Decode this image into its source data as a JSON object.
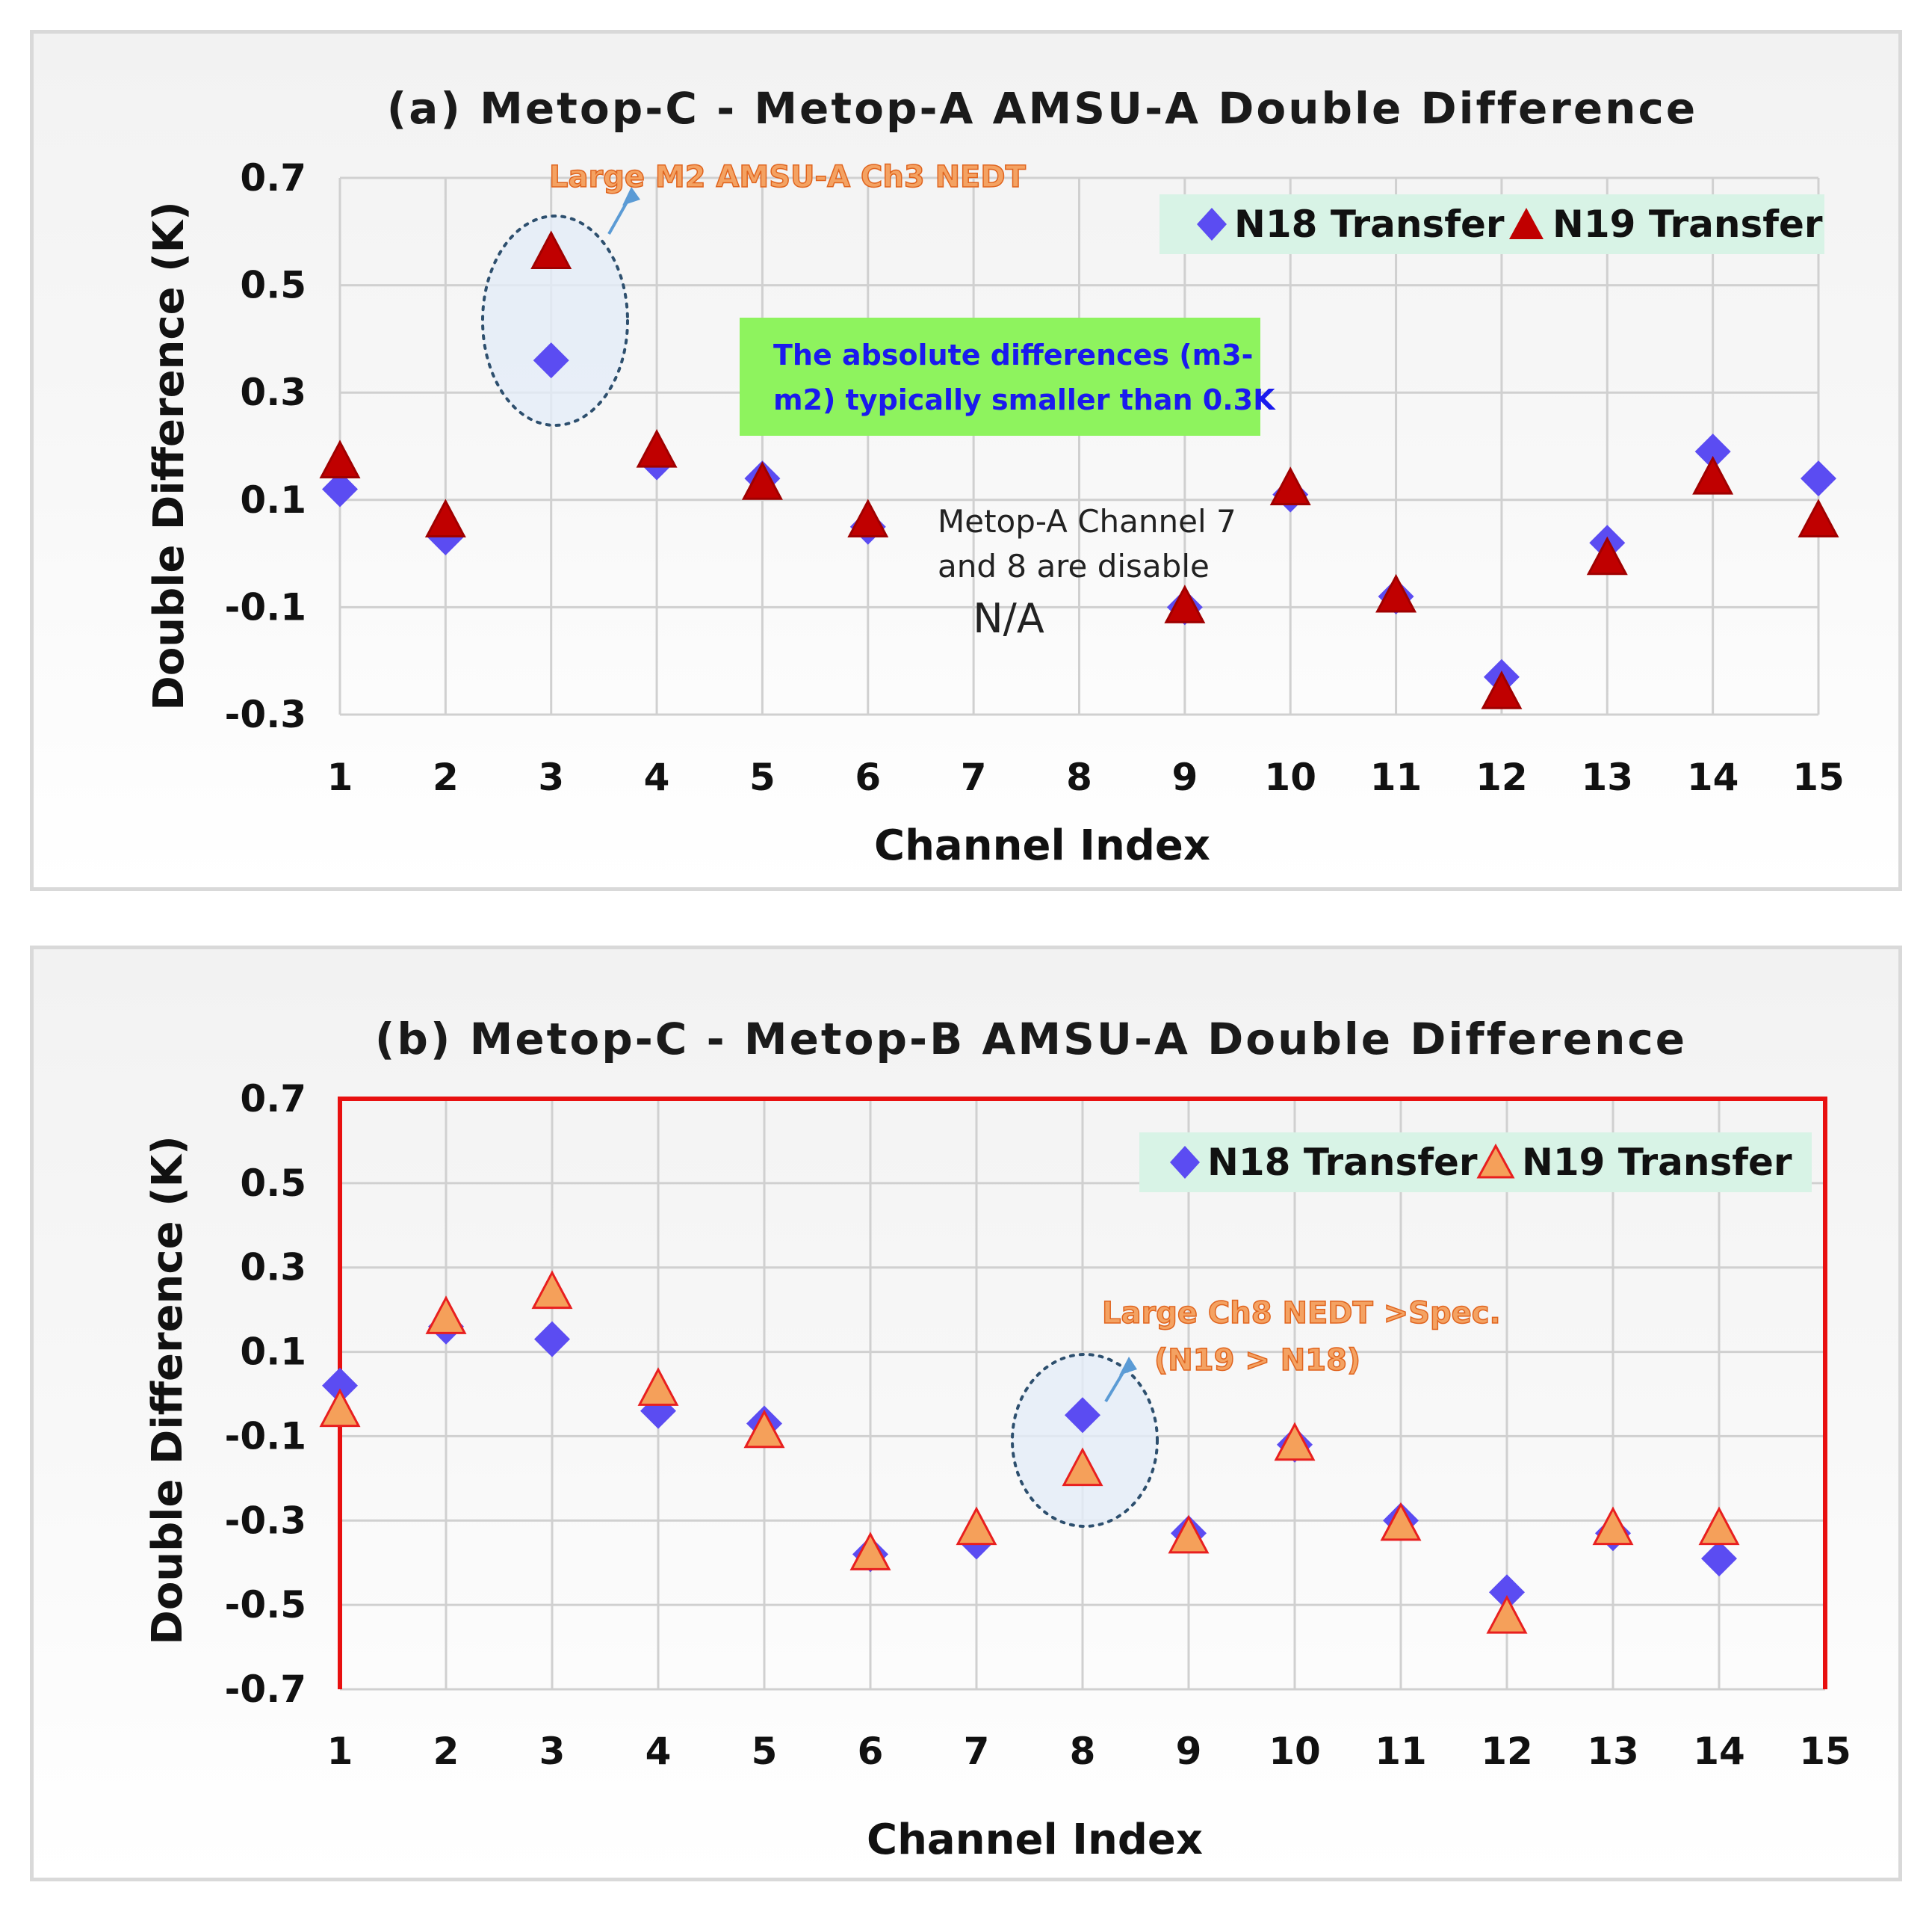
{
  "chart_data": [
    {
      "type": "scatter",
      "title": "(a) Metop-C - Metop-A AMSU-A Double Difference",
      "xlabel": "Channel Index",
      "ylabel": "Double Difference (K)",
      "xlim": [
        1,
        15
      ],
      "ylim": [
        -0.3,
        0.7
      ],
      "x_ticks": [
        "1",
        "2",
        "3",
        "4",
        "5",
        "6",
        "7",
        "8",
        "9",
        "10",
        "11",
        "12",
        "13",
        "14",
        "15"
      ],
      "y_ticks": [
        "0.7",
        "0.5",
        "0.3",
        "0.1",
        "-0.1",
        "-0.3"
      ],
      "y_tick_values": [
        0.7,
        0.5,
        0.3,
        0.1,
        -0.1,
        -0.3
      ],
      "grid": true,
      "legend_position": "top-right",
      "series": [
        {
          "name": "N18 Transfer",
          "marker": "diamond",
          "color": "#5b4cf2",
          "x": [
            1,
            2,
            3,
            4,
            5,
            6,
            9,
            10,
            11,
            12,
            13,
            14,
            15
          ],
          "y": [
            0.12,
            0.03,
            0.36,
            0.17,
            0.14,
            0.05,
            -0.1,
            0.11,
            -0.08,
            -0.23,
            0.02,
            0.19,
            0.14
          ]
        },
        {
          "name": "N19 Transfer",
          "marker": "triangle",
          "color": "#c00000",
          "edge": "#a00000",
          "x": [
            1,
            2,
            3,
            4,
            5,
            6,
            9,
            10,
            11,
            12,
            13,
            14,
            15
          ],
          "y": [
            0.17,
            0.06,
            0.56,
            0.19,
            0.13,
            0.06,
            -0.1,
            0.12,
            -0.08,
            -0.26,
            -0.01,
            0.14,
            0.06
          ]
        }
      ],
      "annotations": {
        "callout": "Large M2 AMSU-A Ch3 NEDT",
        "green_box_line1": "The absolute differences (m3-",
        "green_box_line2": "m2) typically smaller than 0.3K",
        "note_line1": "Metop-A Channel 7",
        "note_line2": "and 8 are disable",
        "na": "N/A"
      }
    },
    {
      "type": "scatter",
      "title": "(b) Metop-C - Metop-B AMSU-A Double Difference",
      "xlabel": "Channel Index",
      "ylabel": "Double Difference (K)",
      "xlim": [
        1,
        15
      ],
      "ylim": [
        -0.7,
        0.7
      ],
      "x_ticks": [
        "1",
        "2",
        "3",
        "4",
        "5",
        "6",
        "7",
        "8",
        "9",
        "10",
        "11",
        "12",
        "13",
        "14",
        "15"
      ],
      "y_ticks": [
        "0.7",
        "0.5",
        "0.3",
        "0.1",
        "-0.1",
        "-0.3",
        "-0.5",
        "-0.7"
      ],
      "y_tick_values": [
        0.7,
        0.5,
        0.3,
        0.1,
        -0.1,
        -0.3,
        -0.5,
        -0.7
      ],
      "grid": true,
      "legend_position": "top-right",
      "series": [
        {
          "name": "N18 Transfer",
          "marker": "diamond",
          "color": "#5b4cf2",
          "x": [
            1,
            2,
            3,
            4,
            5,
            6,
            7,
            8,
            9,
            10,
            11,
            12,
            13,
            14
          ],
          "y": [
            0.02,
            0.16,
            0.13,
            -0.04,
            -0.07,
            -0.38,
            -0.35,
            -0.05,
            -0.33,
            -0.12,
            -0.3,
            -0.47,
            -0.33,
            -0.39
          ]
        },
        {
          "name": "N19 Transfer",
          "marker": "triangle",
          "color": "#f5a05a",
          "edge": "#e81f1f",
          "x": [
            1,
            2,
            3,
            4,
            5,
            6,
            7,
            8,
            9,
            10,
            11,
            12,
            13,
            14
          ],
          "y": [
            -0.04,
            0.18,
            0.24,
            0.01,
            -0.09,
            -0.38,
            -0.32,
            -0.18,
            -0.34,
            -0.12,
            -0.31,
            -0.53,
            -0.32,
            -0.32
          ]
        }
      ],
      "annotations": {
        "callout_line1": "Large Ch8 NEDT >Spec.",
        "callout_line2": "(N19 > N18)"
      }
    }
  ]
}
